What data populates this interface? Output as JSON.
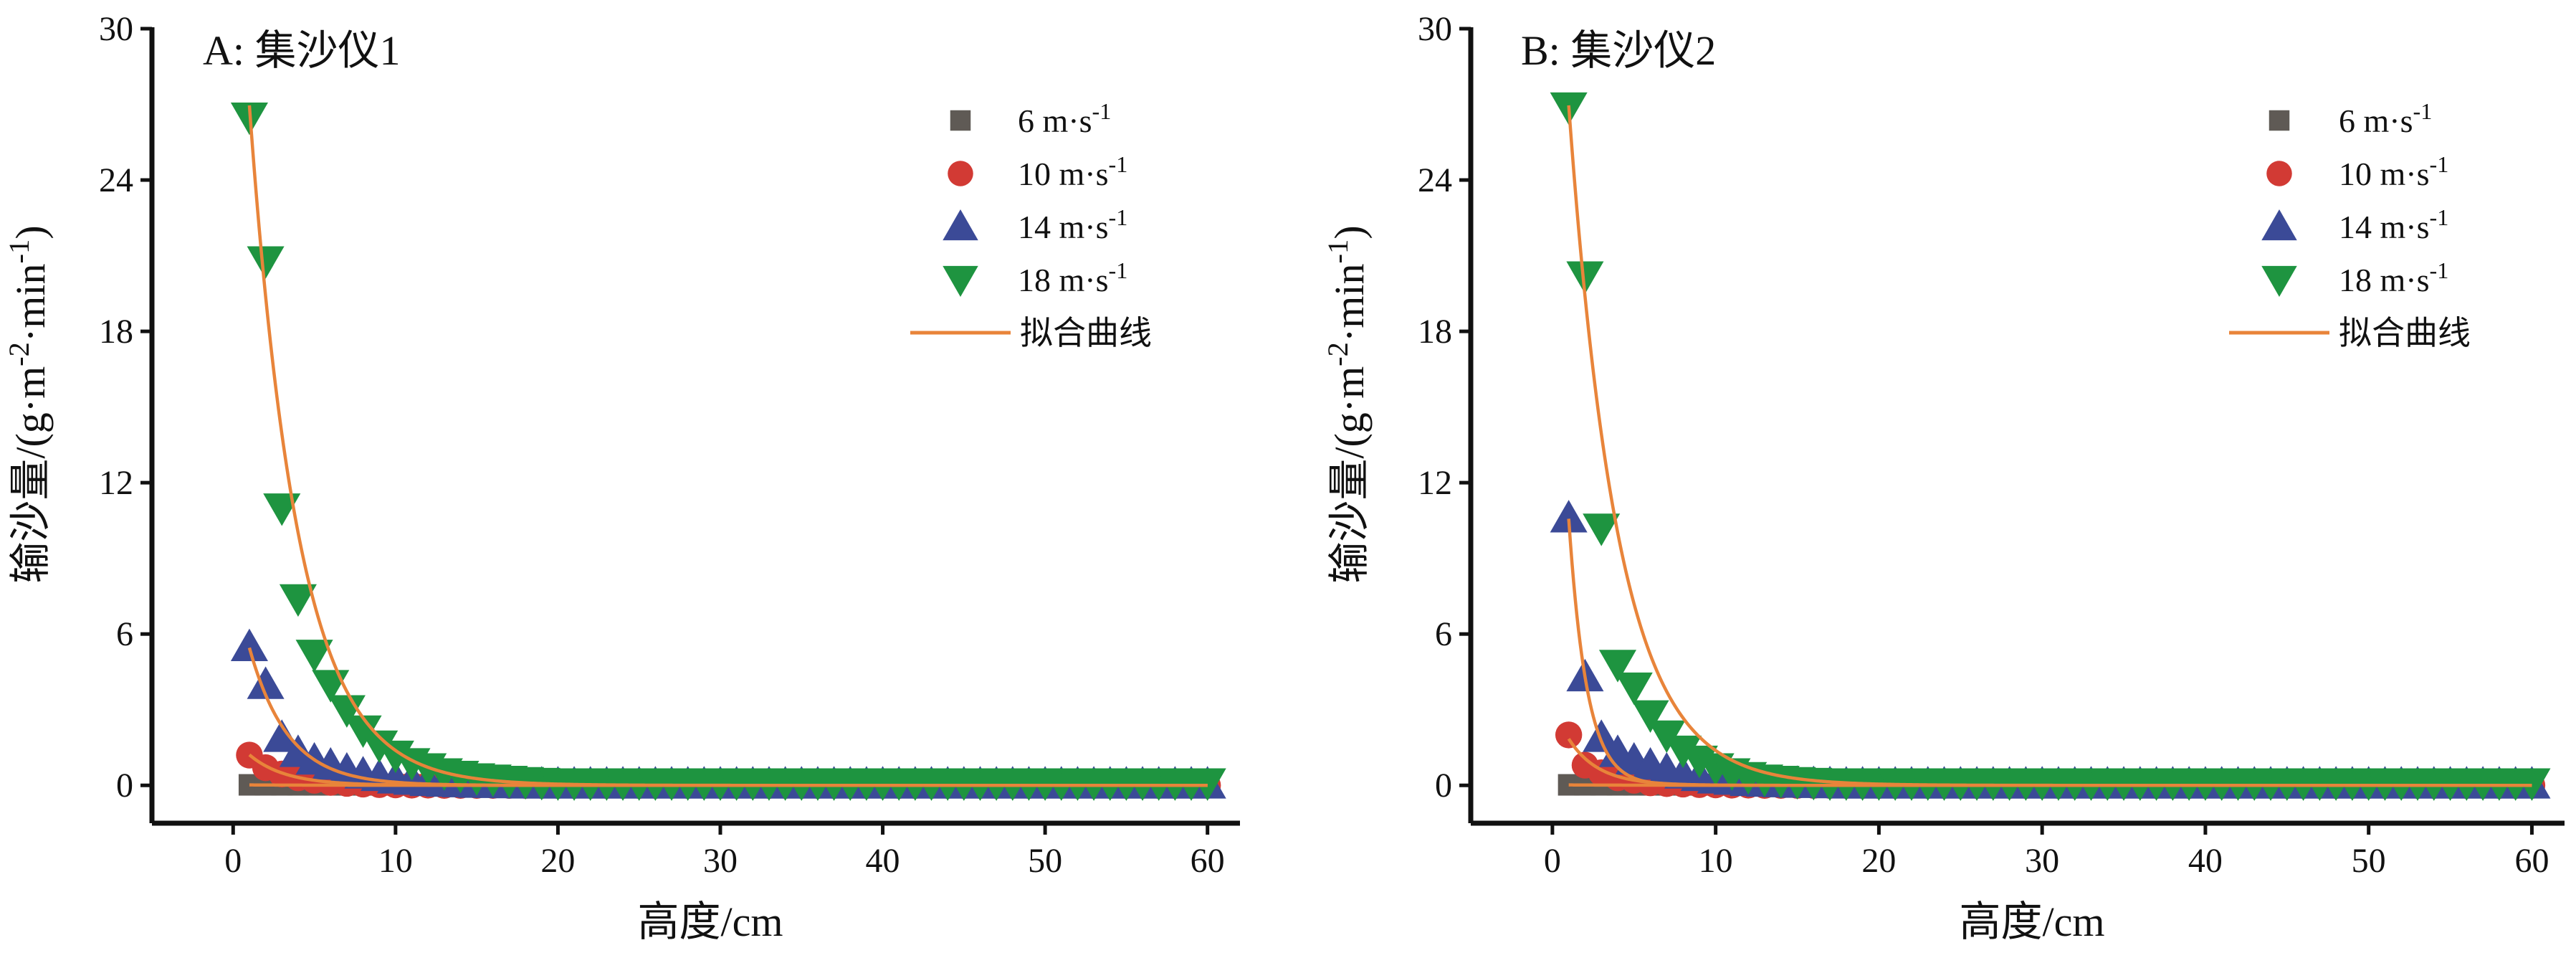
{
  "chart_data": [
    {
      "type": "scatter",
      "title": "A: 集沙仪1",
      "xlabel": "高度/cm",
      "ylabel": "输沙量/(g·m-2·min-1)",
      "ylabel_parts": {
        "base": "输沙量/(g·m",
        "sup1": "-2",
        "mid": "·min",
        "sup2": "-1",
        "end": ")"
      },
      "xlim": [
        -5,
        62
      ],
      "ylim": [
        -1.5,
        30
      ],
      "xticks": [
        0,
        10,
        20,
        30,
        40,
        50,
        60
      ],
      "xtick_labels": [
        "0",
        "10",
        "20",
        "30",
        "40",
        "50",
        "60"
      ],
      "yticks": [
        0,
        6,
        12,
        18,
        24,
        30
      ],
      "ytick_labels": [
        "0",
        "6",
        "12",
        "18",
        "24",
        "30"
      ],
      "legend_position": "top-right",
      "fit_label": "拟合曲线",
      "x": [
        1,
        2,
        3,
        4,
        5,
        6,
        7,
        8,
        9,
        10,
        11,
        12,
        13,
        14,
        15,
        16,
        17,
        18,
        19,
        20,
        21,
        22,
        23,
        24,
        25,
        26,
        27,
        28,
        29,
        30,
        31,
        32,
        33,
        34,
        35,
        36,
        37,
        38,
        39,
        40,
        41,
        42,
        43,
        44,
        45,
        46,
        47,
        48,
        49,
        50,
        51,
        52,
        53,
        54,
        55,
        56,
        57,
        58,
        59,
        60
      ],
      "series": [
        {
          "name": "6 m·s-1",
          "label_base": "6 m·s",
          "label_sup": "-1",
          "marker": "square",
          "color": "#5f5a55",
          "values": [
            0.02,
            0.02,
            0.02,
            0.02,
            0.02,
            0.02,
            0.02,
            0.02,
            0.02,
            0.02,
            0.02,
            0.02,
            0.02,
            0.02,
            0.02,
            0.02,
            0.02,
            0.02,
            0.02,
            0.02,
            0.02,
            0.02,
            0.02,
            0.02,
            0.02,
            0.02,
            0.02,
            0.02,
            0.02,
            0.02,
            0.02,
            0.02,
            0.02,
            0.02,
            0.02,
            0.02,
            0.02,
            0.02,
            0.02,
            0.02,
            0.02,
            0.02,
            0.02,
            0.02,
            0.02,
            0.02,
            0.02,
            0.02,
            0.02,
            0.02,
            0.02,
            0.02,
            0.02,
            0.02,
            0.02,
            0.02,
            0.02,
            0.02,
            0.02,
            0.02
          ],
          "fit": {
            "a": 0.02,
            "b": 0.2
          }
        },
        {
          "name": "10 m·s-1",
          "label_base": "10 m·s",
          "label_sup": "-1",
          "marker": "circle",
          "color": "#d23a34",
          "values": [
            1.2,
            0.7,
            0.45,
            0.3,
            0.2,
            0.12,
            0.08,
            0.05,
            0.03,
            0.02,
            0.01,
            0.01,
            0.0,
            0.0,
            0.0,
            0.0,
            0.0,
            0.0,
            0.0,
            0.0,
            0.0,
            0.0,
            0.0,
            0.0,
            0.0,
            0.0,
            0.0,
            0.0,
            0.0,
            0.0,
            0.0,
            0.0,
            0.0,
            0.0,
            0.0,
            0.0,
            0.0,
            0.0,
            0.0,
            0.0,
            0.0,
            0.0,
            0.0,
            0.0,
            0.0,
            0.0,
            0.0,
            0.0,
            0.0,
            0.0,
            0.0,
            0.0,
            0.0,
            0.0,
            0.0,
            0.0,
            0.0,
            0.0,
            0.0,
            0.0
          ],
          "fit": {
            "a": 1.9,
            "b": 0.45
          }
        },
        {
          "name": "14 m·s-1",
          "label_base": "14 m·s",
          "label_sup": "-1",
          "marker": "triangle-up",
          "color": "#3b4a97",
          "values": [
            5.5,
            4.0,
            1.9,
            1.3,
            1.0,
            0.8,
            0.6,
            0.45,
            0.35,
            0.25,
            0.2,
            0.15,
            0.12,
            0.1,
            0.08,
            0.07,
            0.06,
            0.05,
            0.05,
            0.05,
            0.05,
            0.05,
            0.05,
            0.05,
            0.05,
            0.05,
            0.05,
            0.05,
            0.05,
            0.05,
            0.05,
            0.05,
            0.05,
            0.05,
            0.05,
            0.05,
            0.05,
            0.05,
            0.05,
            0.05,
            0.05,
            0.05,
            0.05,
            0.05,
            0.05,
            0.05,
            0.05,
            0.05,
            0.05,
            0.05,
            0.05,
            0.05,
            0.05,
            0.05,
            0.05,
            0.05,
            0.05,
            0.05,
            0.05,
            0.05
          ],
          "fit": {
            "a": 8.3,
            "b": 0.42
          }
        },
        {
          "name": "18 m·s-1",
          "label_base": "18 m·s",
          "label_sup": "-1",
          "marker": "triangle-down",
          "color": "#1e9440",
          "values": [
            26.5,
            20.8,
            11.0,
            7.4,
            5.2,
            4.0,
            3.0,
            2.2,
            1.6,
            1.2,
            0.9,
            0.7,
            0.5,
            0.4,
            0.3,
            0.25,
            0.2,
            0.15,
            0.12,
            0.1,
            0.1,
            0.1,
            0.1,
            0.1,
            0.1,
            0.1,
            0.1,
            0.1,
            0.1,
            0.1,
            0.1,
            0.1,
            0.1,
            0.1,
            0.1,
            0.1,
            0.1,
            0.1,
            0.1,
            0.1,
            0.1,
            0.1,
            0.1,
            0.1,
            0.1,
            0.1,
            0.1,
            0.1,
            0.1,
            0.1,
            0.1,
            0.1,
            0.1,
            0.1,
            0.1,
            0.1,
            0.1,
            0.1,
            0.1,
            0.1
          ],
          "fit": {
            "a": 37.5,
            "b": 0.33
          }
        }
      ]
    },
    {
      "type": "scatter",
      "title": "B: 集沙仪2",
      "xlabel": "高度/cm",
      "ylabel": "输沙量/(g·m-2·min-1)",
      "ylabel_parts": {
        "base": "输沙量/(g·m",
        "sup1": "-2",
        "mid": "·min",
        "sup2": "-1",
        "end": ")"
      },
      "xlim": [
        -5,
        62
      ],
      "ylim": [
        -1.5,
        30
      ],
      "xticks": [
        0,
        10,
        20,
        30,
        40,
        50,
        60
      ],
      "xtick_labels": [
        "0",
        "10",
        "20",
        "30",
        "40",
        "50",
        "60"
      ],
      "yticks": [
        0,
        6,
        12,
        18,
        24,
        30
      ],
      "ytick_labels": [
        "0",
        "6",
        "12",
        "18",
        "24",
        "30"
      ],
      "legend_position": "top-right",
      "fit_label": "拟合曲线",
      "x": [
        1,
        2,
        3,
        4,
        5,
        6,
        7,
        8,
        9,
        10,
        11,
        12,
        13,
        14,
        15,
        16,
        17,
        18,
        19,
        20,
        21,
        22,
        23,
        24,
        25,
        26,
        27,
        28,
        29,
        30,
        31,
        32,
        33,
        34,
        35,
        36,
        37,
        38,
        39,
        40,
        41,
        42,
        43,
        44,
        45,
        46,
        47,
        48,
        49,
        50,
        51,
        52,
        53,
        54,
        55,
        56,
        57,
        58,
        59,
        60
      ],
      "series": [
        {
          "name": "6 m·s-1",
          "label_base": "6 m·s",
          "label_sup": "-1",
          "marker": "square",
          "color": "#5f5a55",
          "values": [
            0.02,
            0.02,
            0.02,
            0.02,
            0.02,
            0.02,
            0.02,
            0.02,
            0.02,
            0.02,
            0.02,
            0.02,
            0.02,
            0.02,
            0.02,
            0.02,
            0.02,
            0.02,
            0.02,
            0.02,
            0.02,
            0.02,
            0.02,
            0.02,
            0.02,
            0.02,
            0.02,
            0.02,
            0.02,
            0.02,
            0.02,
            0.02,
            0.02,
            0.02,
            0.02,
            0.02,
            0.02,
            0.02,
            0.02,
            0.02,
            0.02,
            0.02,
            0.02,
            0.02,
            0.02,
            0.02,
            0.02,
            0.02,
            0.02,
            0.02,
            0.02,
            0.02,
            0.02,
            0.02,
            0.02,
            0.02,
            0.02,
            0.02,
            0.02,
            0.02
          ],
          "fit": {
            "a": 0.02,
            "b": 0.2
          }
        },
        {
          "name": "10 m·s-1",
          "label_base": "10 m·s",
          "label_sup": "-1",
          "marker": "circle",
          "color": "#d23a34",
          "values": [
            2.0,
            0.8,
            0.5,
            0.3,
            0.2,
            0.1,
            0.07,
            0.05,
            0.03,
            0.02,
            0.01,
            0.01,
            0.0,
            0.0,
            0.0,
            0.0,
            0.0,
            0.0,
            0.0,
            0.0,
            0.0,
            0.0,
            0.0,
            0.0,
            0.0,
            0.0,
            0.0,
            0.0,
            0.0,
            0.0,
            0.0,
            0.0,
            0.0,
            0.0,
            0.0,
            0.0,
            0.0,
            0.0,
            0.0,
            0.0,
            0.0,
            0.0,
            0.0,
            0.0,
            0.0,
            0.0,
            0.0,
            0.0,
            0.0,
            0.0,
            0.0,
            0.0,
            0.0,
            0.0,
            0.0,
            0.0,
            0.0,
            0.0,
            0.0,
            0.0
          ],
          "fit": {
            "a": 3.2,
            "b": 0.55
          }
        },
        {
          "name": "14 m·s-1",
          "label_base": "14 m·s",
          "label_sup": "-1",
          "marker": "triangle-up",
          "color": "#3b4a97",
          "values": [
            10.6,
            4.3,
            1.9,
            1.3,
            1.0,
            0.8,
            0.6,
            0.45,
            0.35,
            0.25,
            0.2,
            0.15,
            0.12,
            0.1,
            0.08,
            0.07,
            0.06,
            0.05,
            0.05,
            0.05,
            0.05,
            0.05,
            0.05,
            0.05,
            0.05,
            0.05,
            0.05,
            0.05,
            0.05,
            0.05,
            0.05,
            0.05,
            0.05,
            0.05,
            0.05,
            0.05,
            0.05,
            0.05,
            0.05,
            0.05,
            0.05,
            0.05,
            0.05,
            0.05,
            0.05,
            0.05,
            0.05,
            0.05,
            0.05,
            0.05,
            0.05,
            0.05,
            0.05,
            0.05,
            0.05,
            0.05,
            0.05,
            0.05,
            0.05,
            0.05
          ],
          "fit": {
            "a": 26.0,
            "b": 0.9
          }
        },
        {
          "name": "18 m·s-1",
          "label_base": "18 m·s",
          "label_sup": "-1",
          "marker": "triangle-down",
          "color": "#1e9440",
          "values": [
            26.9,
            20.2,
            10.2,
            4.8,
            3.9,
            2.8,
            2.0,
            1.4,
            1.0,
            0.7,
            0.5,
            0.35,
            0.25,
            0.2,
            0.15,
            0.12,
            0.1,
            0.1,
            0.1,
            0.1,
            0.1,
            0.1,
            0.1,
            0.1,
            0.1,
            0.1,
            0.1,
            0.1,
            0.1,
            0.1,
            0.1,
            0.1,
            0.1,
            0.1,
            0.1,
            0.1,
            0.1,
            0.1,
            0.1,
            0.1,
            0.1,
            0.1,
            0.1,
            0.1,
            0.1,
            0.1,
            0.1,
            0.1,
            0.1,
            0.1,
            0.1,
            0.1,
            0.1,
            0.1,
            0.1,
            0.1,
            0.1,
            0.1,
            0.1,
            0.1
          ],
          "fit": {
            "a": 37.5,
            "b": 0.33
          }
        }
      ],
      "fit_color": "#e8843a"
    }
  ],
  "style": {
    "fit_color": "#e8843a",
    "axis_color": "#111111"
  }
}
